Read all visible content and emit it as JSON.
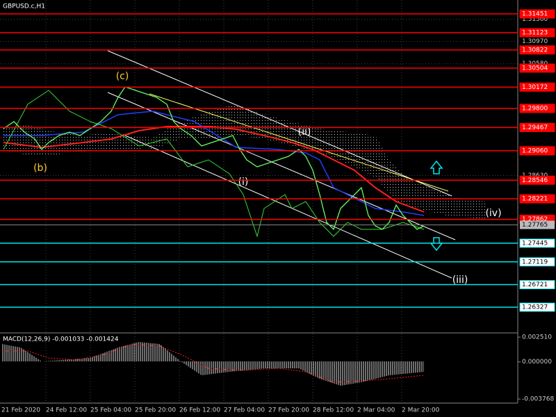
{
  "window_title": "GBPUSD.c,H1",
  "price_axis": {
    "ylim": [
      1.2589,
      1.31694
    ],
    "ticks": [
      {
        "value": 1.3136,
        "label": "1.31360"
      },
      {
        "value": 1.3097,
        "label": "1.30970"
      },
      {
        "value": 1.3058,
        "label": "1.30580"
      },
      {
        "value": 1.2863,
        "label": "1.28630"
      }
    ]
  },
  "levels": [
    {
      "value": 1.31451,
      "label": "1.31451",
      "color": "#ff0000"
    },
    {
      "value": 1.31123,
      "label": "1.31123",
      "color": "#ff0000"
    },
    {
      "value": 1.30822,
      "label": "1.30822",
      "color": "#ff0000"
    },
    {
      "value": 1.30504,
      "label": "1.30504",
      "color": "#ff0000"
    },
    {
      "value": 1.30172,
      "label": "1.30172",
      "color": "#ff0000"
    },
    {
      "value": 1.298,
      "label": "1.29800",
      "color": "#ff0000"
    },
    {
      "value": 1.29467,
      "label": "1.29467",
      "color": "#ff0000"
    },
    {
      "value": 1.2906,
      "label": "1.29060",
      "color": "#ff0000"
    },
    {
      "value": 1.28546,
      "label": "1.28546",
      "color": "#ff0000"
    },
    {
      "value": 1.28221,
      "label": "1.28221",
      "color": "#ff0000"
    },
    {
      "value": 1.27862,
      "label": "1.27862",
      "color": "#ff0000"
    },
    {
      "value": 1.27445,
      "label": "1.27445",
      "color": "#00e5ee"
    },
    {
      "value": 1.27119,
      "label": "1.27119",
      "color": "#00e5ee"
    },
    {
      "value": 1.26721,
      "label": "1.26721",
      "color": "#00e5ee"
    },
    {
      "value": 1.26327,
      "label": "1.26327",
      "color": "#00e5ee"
    }
  ],
  "current_price": {
    "value": 1.27765,
    "label": "1.27765"
  },
  "wave_labels": [
    "(c)",
    "(b)",
    "(i)",
    "(ii)",
    "(iii)",
    "(iv)"
  ],
  "macd": {
    "title": "MACD(12,26,9) -0.001033 -0.001424",
    "ylim": [
      -0.00404,
      0.0028
    ],
    "ticks": [
      {
        "value": 0.00251,
        "label": "0.002510"
      },
      {
        "value": 0,
        "label": "0.000000"
      },
      {
        "value": -0.003768,
        "label": "-0.003768"
      }
    ]
  },
  "dates": [
    "21 Feb 2020",
    "24 Feb 12:00",
    "25 Feb 04:00",
    "25 Feb 20:00",
    "26 Feb 12:00",
    "27 Feb 04:00",
    "27 Feb 20:00",
    "28 Feb 12:00",
    "2 Mar 04:00",
    "2 Mar 20:00"
  ]
}
